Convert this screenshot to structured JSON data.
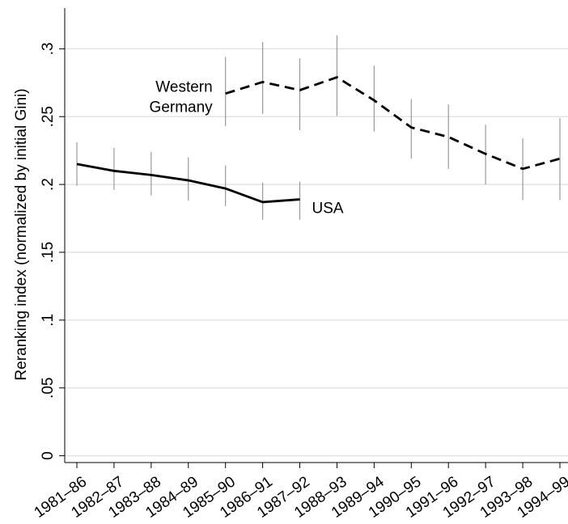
{
  "chart_data": {
    "type": "line",
    "y_label": "Reranking index (normalized by initial Gini)",
    "categories": [
      "1981–86",
      "1982–87",
      "1983–88",
      "1984–89",
      "1985–90",
      "1986–91",
      "1987–92",
      "1988–93",
      "1989–94",
      "1990–95",
      "1991–96",
      "1992–97",
      "1993–98",
      "1994–99"
    ],
    "series": [
      {
        "name": "USA",
        "color": "#000000",
        "dash": "solid",
        "values": [
          0.215,
          0.21,
          0.207,
          0.203,
          0.197,
          0.187,
          0.189,
          null,
          null,
          null,
          null,
          null,
          null,
          null
        ],
        "lower": [
          0.199,
          0.196,
          0.192,
          0.188,
          0.184,
          0.174,
          0.174,
          null,
          null,
          null,
          null,
          null,
          null,
          null
        ],
        "upper": [
          0.231,
          0.227,
          0.224,
          0.22,
          0.214,
          0.2015,
          0.202,
          null,
          null,
          null,
          null,
          null,
          null,
          null
        ]
      },
      {
        "name": "Western Germany",
        "color": "#000000",
        "dash": "dashed",
        "values": [
          null,
          null,
          null,
          null,
          0.267,
          0.2755,
          0.2695,
          0.279,
          0.262,
          0.242,
          0.235,
          0.2225,
          0.2115,
          0.219
        ],
        "lower": [
          null,
          null,
          null,
          null,
          0.243,
          0.252,
          0.24,
          0.2505,
          0.239,
          0.219,
          0.2115,
          0.2,
          0.1885,
          0.1885
        ],
        "upper": [
          null,
          null,
          null,
          null,
          0.294,
          0.305,
          0.293,
          0.31,
          0.2875,
          0.263,
          0.259,
          0.244,
          0.234,
          0.249
        ]
      }
    ],
    "error_bar_color": "#999999",
    "ylim": [
      -0.005,
      0.33
    ],
    "yticks": [
      {
        "value": 0,
        "label": "0"
      },
      {
        "value": 0.05,
        "label": ".05"
      },
      {
        "value": 0.1,
        "label": ".1"
      },
      {
        "value": 0.15,
        "label": ".15"
      },
      {
        "value": 0.2,
        "label": ".2"
      },
      {
        "value": 0.25,
        "label": ".25"
      },
      {
        "value": 0.3,
        "label": ".3"
      }
    ],
    "grid": true
  }
}
